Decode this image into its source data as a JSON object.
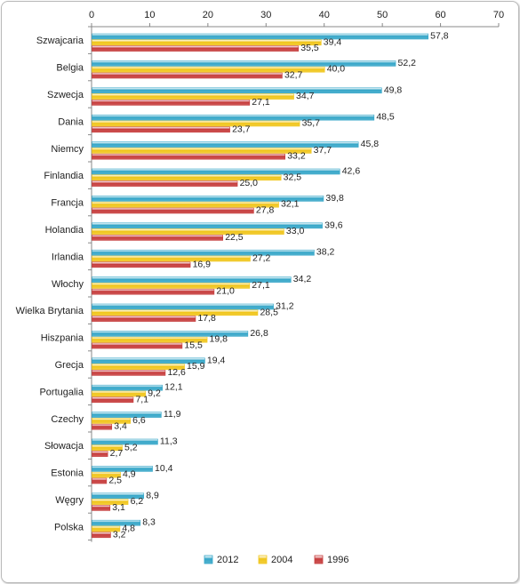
{
  "chart_data": {
    "type": "bar",
    "orientation": "horizontal",
    "categories": [
      "Szwajcaria",
      "Belgia",
      "Szwecja",
      "Dania",
      "Niemcy",
      "Finlandia",
      "Francja",
      "Holandia",
      "Irlandia",
      "Włochy",
      "Wielka Brytania",
      "Hiszpania",
      "Grecja",
      "Portugalia",
      "Czechy",
      "Słowacja",
      "Estonia",
      "Węgry",
      "Polska"
    ],
    "series": [
      {
        "name": "2012",
        "color": "#35a6c8",
        "values": [
          57.8,
          52.2,
          49.8,
          48.5,
          45.8,
          42.6,
          39.8,
          39.6,
          38.2,
          34.2,
          31.2,
          26.8,
          19.4,
          12.1,
          11.9,
          11.3,
          10.4,
          8.9,
          8.3
        ],
        "labels": [
          "57,8",
          "52,2",
          "49,8",
          "48,5",
          "45,8",
          "42,6",
          "39,8",
          "39,6",
          "38,2",
          "34,2",
          "31,2",
          "26,8",
          "19,4",
          "12,1",
          "11,9",
          "11,3",
          "10,4",
          "8,9",
          "8,3"
        ]
      },
      {
        "name": "2004",
        "color": "#f0c51a",
        "values": [
          39.4,
          40.0,
          34.7,
          35.7,
          37.7,
          32.5,
          32.1,
          33.0,
          27.2,
          27.1,
          28.5,
          19.8,
          15.9,
          9.2,
          6.6,
          5.2,
          4.9,
          6.2,
          4.8
        ],
        "labels": [
          "39,4",
          "40,0",
          "34,7",
          "35,7",
          "37,7",
          "32,5",
          "32,1",
          "33,0",
          "27,2",
          "27,1",
          "28,5",
          "19,8",
          "15,9",
          "9,2",
          "6,6",
          "5,2",
          "4,9",
          "6,2",
          "4,8"
        ]
      },
      {
        "name": "1996",
        "color": "#c63b3b",
        "values": [
          35.5,
          32.7,
          27.1,
          23.7,
          33.2,
          25.0,
          27.8,
          22.5,
          16.9,
          21.0,
          17.8,
          15.5,
          12.6,
          7.1,
          3.4,
          2.7,
          2.5,
          3.1,
          3.2
        ],
        "labels": [
          "35,5",
          "32,7",
          "27,1",
          "23,7",
          "33,2",
          "25,0",
          "27,8",
          "22,5",
          "16,9",
          "21,0",
          "17,8",
          "15,5",
          "12,6",
          "7,1",
          "3,4",
          "2,7",
          "2,5",
          "3,1",
          "3,2"
        ]
      }
    ],
    "xlim": [
      0,
      70
    ],
    "x_ticks": [
      "0",
      "10",
      "20",
      "30",
      "40",
      "50",
      "60",
      "70"
    ],
    "x_axis_position": "top",
    "grid": false,
    "legend_placement": "bottom"
  }
}
